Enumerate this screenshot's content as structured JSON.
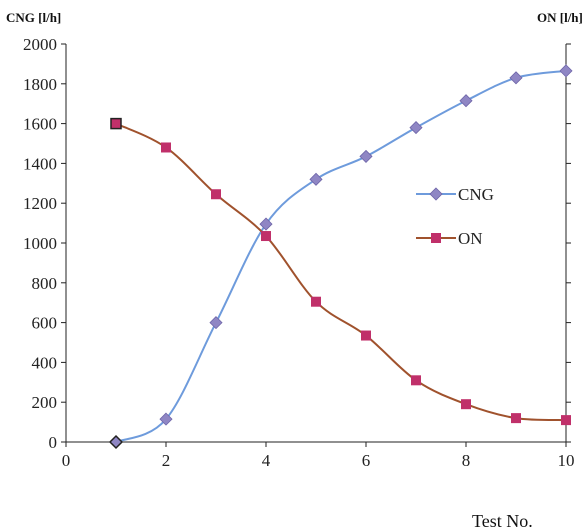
{
  "chart_data": {
    "type": "line",
    "y_left_label": "CNG [l/h]",
    "y_right_label": "ON [l/h]",
    "x_label": "Test No.",
    "x_ticks": [
      "0",
      "2",
      "4",
      "6",
      "8",
      "10"
    ],
    "y_ticks": [
      "0",
      "200",
      "400",
      "600",
      "800",
      "1000",
      "1200",
      "1400",
      "1600",
      "1800",
      "2000"
    ],
    "xlim": [
      0,
      10
    ],
    "ylim": [
      0,
      2000
    ],
    "legend_position": "center-right",
    "grid": false,
    "series": [
      {
        "name": "CNG",
        "color": "#6e9bdc",
        "marker_color": "#8f86c4",
        "marker": "diamond",
        "axis": "left",
        "x": [
          1,
          2,
          3,
          4,
          5,
          6,
          7,
          8,
          9,
          10
        ],
        "values": [
          0,
          115,
          600,
          1095,
          1320,
          1435,
          1580,
          1715,
          1830,
          1865
        ]
      },
      {
        "name": "ON",
        "color": "#a0522d",
        "marker_color": "#c0306a",
        "marker": "square",
        "axis": "right",
        "x": [
          1,
          2,
          3,
          4,
          5,
          6,
          7,
          8,
          9,
          10
        ],
        "values_in_left_axis_units": [
          1600,
          1480,
          1245,
          1035,
          705,
          535,
          310,
          190,
          120,
          110
        ]
      }
    ]
  }
}
